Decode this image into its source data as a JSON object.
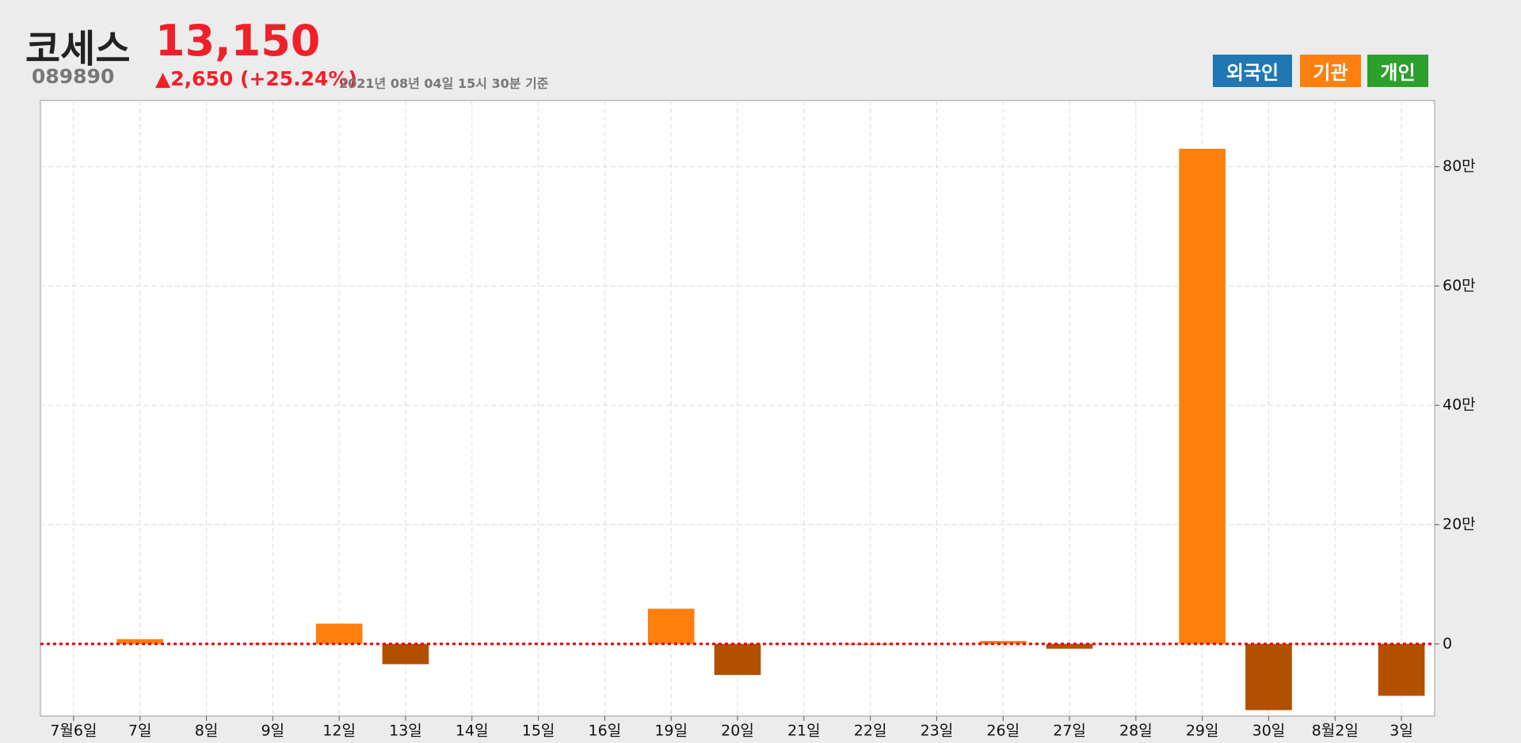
{
  "header": {
    "name": "코세스",
    "price": "13,150",
    "code": "089890",
    "change": "▲2,650 (+25.24%)",
    "timestamp": "2021년 08년 04일 15시 30분 기준"
  },
  "legend_buttons": [
    {
      "label": "외국인",
      "color": "#1f77b4"
    },
    {
      "label": "기관",
      "color": "#ff7f0e"
    },
    {
      "label": "개인",
      "color": "#2ca02c"
    }
  ],
  "chart_data": {
    "type": "bar",
    "categories": [
      "7월6일",
      "7일",
      "8일",
      "9일",
      "12일",
      "13일",
      "14일",
      "15일",
      "16일",
      "19일",
      "20일",
      "21일",
      "22일",
      "23일",
      "26일",
      "27일",
      "28일",
      "29일",
      "30일",
      "8월2일",
      "3일"
    ],
    "values": [
      0,
      8000,
      0,
      1000,
      34000,
      -34000,
      0,
      0,
      0,
      59000,
      -52000,
      0,
      -1000,
      0,
      5000,
      -8000,
      0,
      830000,
      -111000,
      0,
      -87000
    ],
    "color": "#ff7f0e",
    "negative_color": "#b35000",
    "ylim": [
      -121000,
      911000
    ],
    "yticks": [
      0,
      {
        "value": 200000,
        "label": "20만"
      },
      {
        "value": 400000,
        "label": "40만"
      },
      {
        "value": 600000,
        "label": "60만"
      },
      {
        "value": 800000,
        "label": "80만"
      }
    ],
    "grid": true,
    "y_axis_side": "right"
  }
}
